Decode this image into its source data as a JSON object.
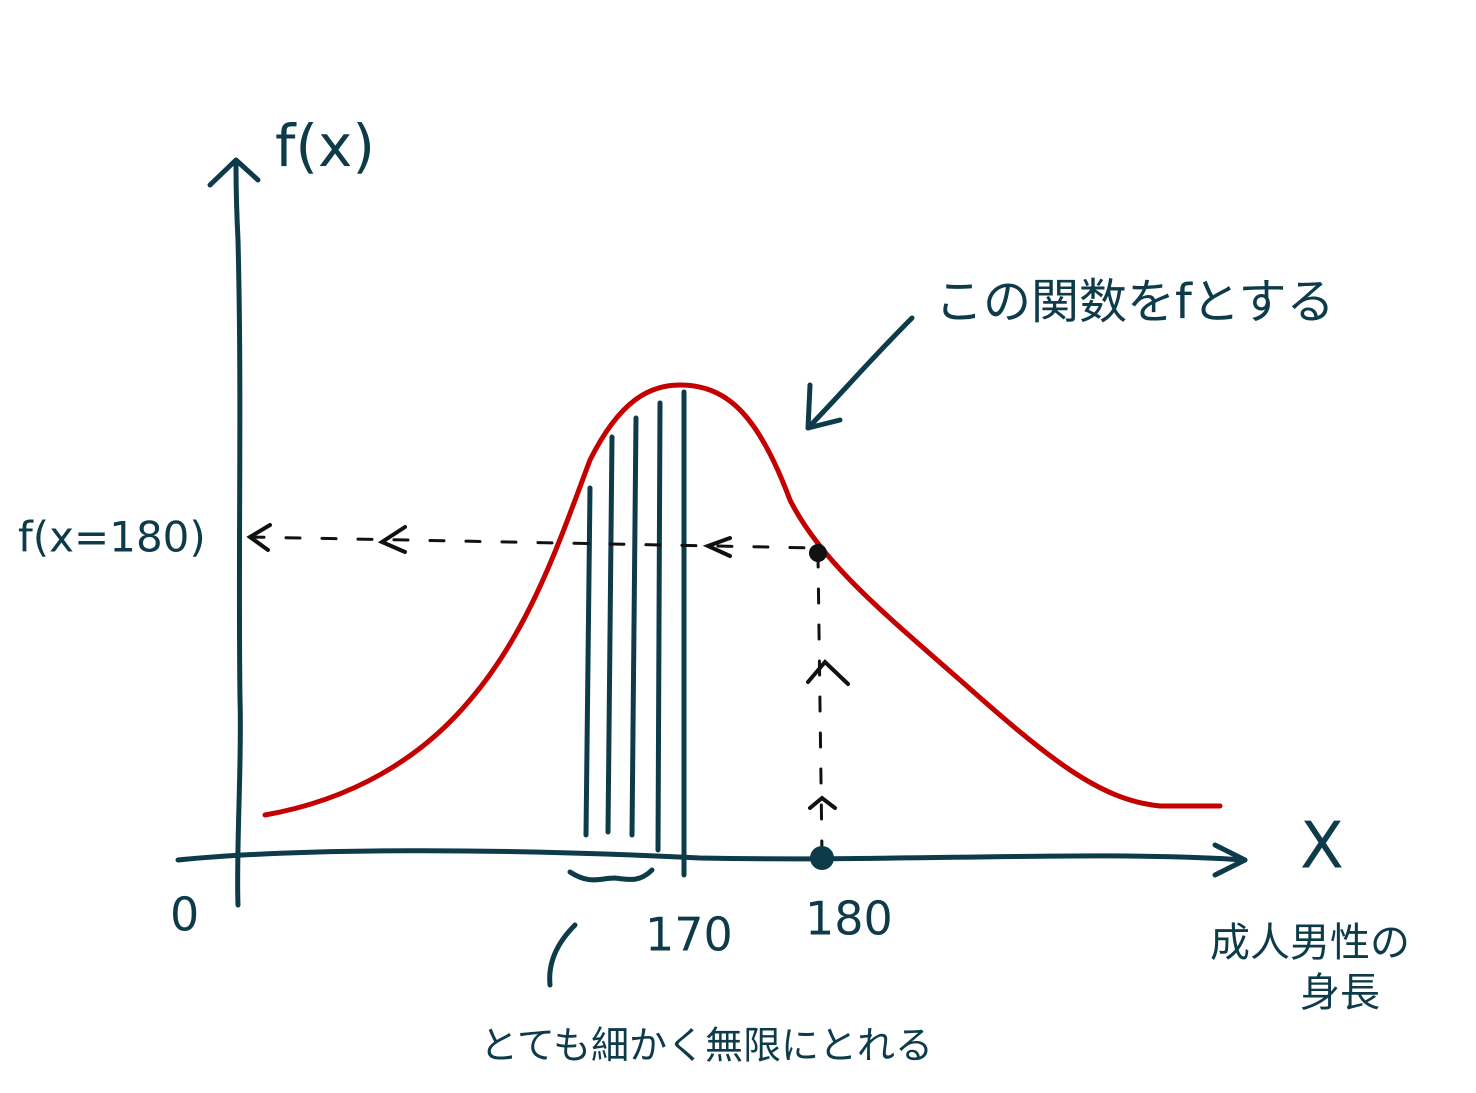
{
  "axes": {
    "y_label": "f(x)",
    "x_label": "X",
    "origin": "0"
  },
  "x_ticks": [
    "170",
    "180"
  ],
  "value_label": "f(x=180)",
  "x_description": [
    "成人男性の",
    "身長"
  ],
  "annotations": {
    "function": "この関数をfとする",
    "slices": "とても細かく無限にとれる"
  }
}
